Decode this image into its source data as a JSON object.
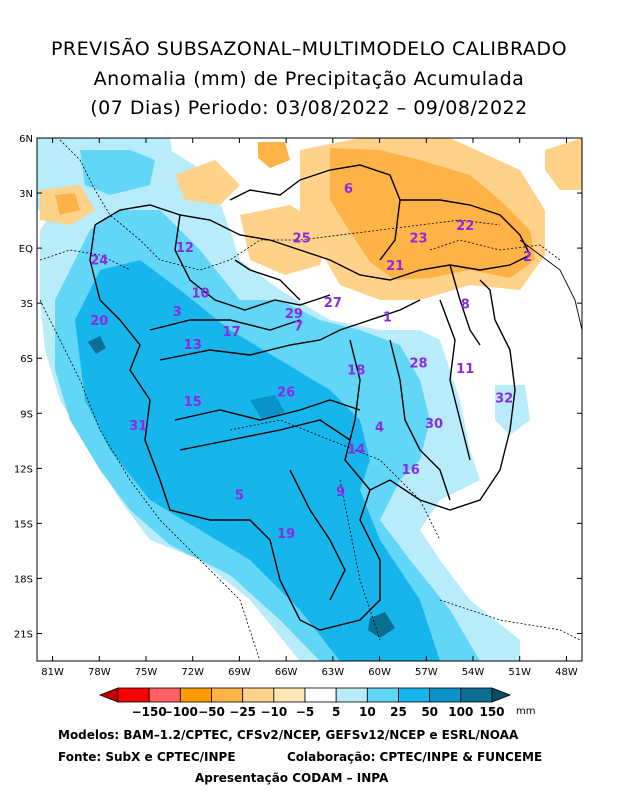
{
  "title": {
    "line1": "PREVISÃO SUBSAZONAL–MULTIMODELO CALIBRADO",
    "line2": "Anomalia (mm) de Precipitação Acumulada",
    "line3": "(07 Dias) Periodo: 03/08/2022 – 09/08/2022"
  },
  "axes": {
    "y_ticks": [
      "6N",
      "3N",
      "EQ",
      "3S",
      "6S",
      "9S",
      "12S",
      "15S",
      "18S",
      "21S"
    ],
    "x_ticks": [
      "81W",
      "78W",
      "75W",
      "72W",
      "69W",
      "66W",
      "63W",
      "60W",
      "57W",
      "54W",
      "51W",
      "48W"
    ]
  },
  "basins": [
    {
      "id": "1",
      "lon": -59.5,
      "lat": -4.0
    },
    {
      "id": "2",
      "lon": -50.5,
      "lat": -0.7
    },
    {
      "id": "3",
      "lon": -73.0,
      "lat": -3.7
    },
    {
      "id": "4",
      "lon": -60.0,
      "lat": -10.0
    },
    {
      "id": "5",
      "lon": -69.0,
      "lat": -13.7
    },
    {
      "id": "6",
      "lon": -62.0,
      "lat": 3.0
    },
    {
      "id": "7",
      "lon": -65.2,
      "lat": -4.5
    },
    {
      "id": "8",
      "lon": -54.5,
      "lat": -3.3
    },
    {
      "id": "9",
      "lon": -62.5,
      "lat": -13.5
    },
    {
      "id": "10",
      "lon": -71.5,
      "lat": -2.7
    },
    {
      "id": "11",
      "lon": -54.5,
      "lat": -6.8
    },
    {
      "id": "12",
      "lon": -72.5,
      "lat": -0.2
    },
    {
      "id": "13",
      "lon": -72.0,
      "lat": -5.5
    },
    {
      "id": "14",
      "lon": -61.5,
      "lat": -11.2
    },
    {
      "id": "15",
      "lon": -72.0,
      "lat": -8.6
    },
    {
      "id": "16",
      "lon": -58.0,
      "lat": -12.3
    },
    {
      "id": "17",
      "lon": -69.5,
      "lat": -4.8
    },
    {
      "id": "18",
      "lon": -61.5,
      "lat": -6.9
    },
    {
      "id": "19",
      "lon": -66.0,
      "lat": -15.8
    },
    {
      "id": "20",
      "lon": -78.0,
      "lat": -4.2
    },
    {
      "id": "21",
      "lon": -59.0,
      "lat": -1.2
    },
    {
      "id": "22",
      "lon": -54.5,
      "lat": 1.0
    },
    {
      "id": "23",
      "lon": -57.5,
      "lat": 0.3
    },
    {
      "id": "24",
      "lon": -78.0,
      "lat": -0.9
    },
    {
      "id": "25",
      "lon": -65.0,
      "lat": 0.3
    },
    {
      "id": "26",
      "lon": -66.0,
      "lat": -8.1
    },
    {
      "id": "27",
      "lon": -63.0,
      "lat": -3.2
    },
    {
      "id": "28",
      "lon": -57.5,
      "lat": -6.5
    },
    {
      "id": "29",
      "lon": -65.5,
      "lat": -3.8
    },
    {
      "id": "30",
      "lon": -56.5,
      "lat": -9.8
    },
    {
      "id": "31",
      "lon": -75.5,
      "lat": -9.9
    },
    {
      "id": "32",
      "lon": -52.0,
      "lat": -8.4
    }
  ],
  "colorbar": {
    "labels": [
      "−150",
      "−100",
      "−50",
      "−25",
      "−10",
      "−5",
      "5",
      "10",
      "25",
      "50",
      "100",
      "150"
    ],
    "unit": "mm",
    "colors": [
      "#c00000",
      "#ff0000",
      "#ff6060",
      "#ff9a00",
      "#ffb347",
      "#ffd28a",
      "#ffe8b5",
      "#ffffff",
      "#b8ecfb",
      "#62d6f7",
      "#16b5ec",
      "#0a93c8",
      "#0a6f93",
      "#0a4d66"
    ]
  },
  "footer": {
    "models": "Modelos: BAM–1.2/CPTEC, CFSv2/NCEP, GEFSv12/NCEP e ESRL/NOAA",
    "source": "Fonte: SubX e CPTEC/INPE",
    "collab": "Colaboração: CPTEC/INPE & FUNCEME",
    "presentation": "Apresentação CODAM – INPA"
  }
}
